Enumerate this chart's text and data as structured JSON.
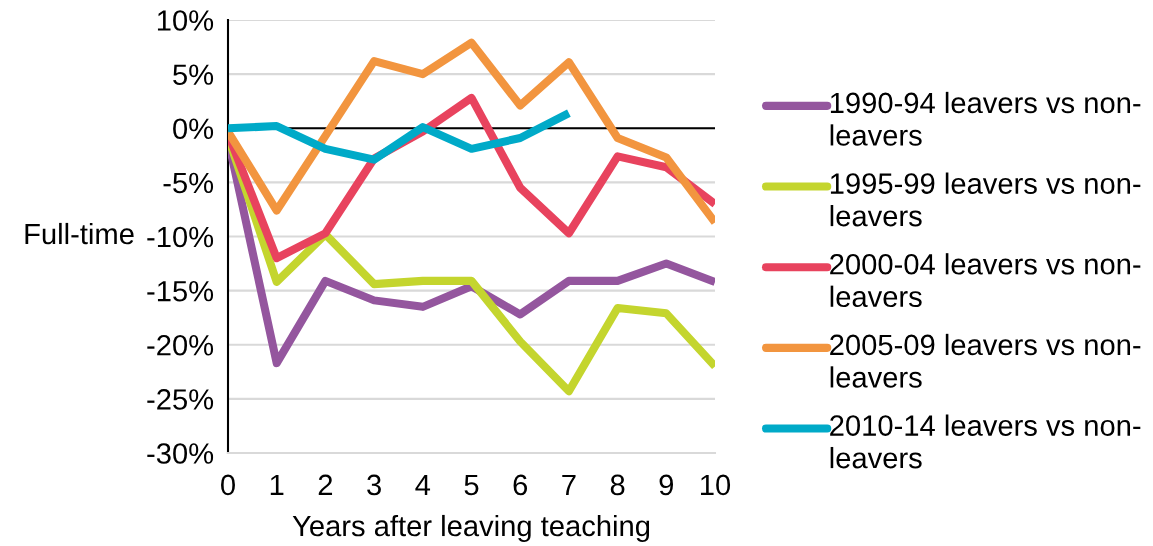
{
  "chart_data": {
    "type": "line",
    "xlabel": "Years after leaving teaching",
    "ylabel": "Full-time",
    "x": [
      0,
      1,
      2,
      3,
      4,
      5,
      6,
      7,
      8,
      9,
      10
    ],
    "series": [
      {
        "name": "1990-94 leavers vs non-leavers",
        "color": "#94569e",
        "values": [
          -1.0,
          -21.7,
          -14.1,
          -15.9,
          -16.5,
          -14.6,
          -17.2,
          -14.1,
          -14.1,
          -12.5,
          -14.2
        ]
      },
      {
        "name": "1995-99 leavers vs non-leavers",
        "color": "#c4d52e",
        "values": [
          -0.8,
          -14.2,
          -9.8,
          -14.4,
          -14.1,
          -14.1,
          -19.7,
          -24.3,
          -16.6,
          -17.1,
          -22.0
        ]
      },
      {
        "name": "2000-04 leavers vs non-leavers",
        "color": "#e8435e",
        "values": [
          -0.5,
          -12.0,
          -9.7,
          -2.8,
          -0.3,
          2.8,
          -5.5,
          -9.7,
          -2.6,
          -3.6,
          -7.0
        ]
      },
      {
        "name": "2005-09 leavers vs non-leavers",
        "color": "#f2953f",
        "values": [
          -0.3,
          -7.6,
          -0.7,
          6.2,
          5.0,
          7.9,
          2.1,
          6.1,
          -0.9,
          -2.7,
          -8.7
        ]
      },
      {
        "name": "2010-14 leavers vs non-leavers",
        "color": "#00aac8",
        "x": [
          0,
          1,
          2,
          3,
          4,
          5,
          6,
          7
        ],
        "values": [
          0.0,
          0.2,
          -1.9,
          -2.9,
          0.1,
          -1.9,
          -0.9,
          1.4
        ]
      }
    ],
    "xlim": [
      0,
      10
    ],
    "xticks": [
      0,
      1,
      2,
      3,
      4,
      5,
      6,
      7,
      8,
      9,
      10
    ],
    "ylim": [
      -30,
      10
    ],
    "yticks": [
      {
        "value": -30,
        "label": "-30%"
      },
      {
        "value": -25,
        "label": "-25%"
      },
      {
        "value": -20,
        "label": "-20%"
      },
      {
        "value": -15,
        "label": "-15%"
      },
      {
        "value": -10,
        "label": "-10%"
      },
      {
        "value": -5,
        "label": "-5%"
      },
      {
        "value": 0,
        "label": "0%"
      },
      {
        "value": 5,
        "label": "5%"
      },
      {
        "value": 10,
        "label": "10%"
      }
    ],
    "grid": "y",
    "legend": "right",
    "line_style": "solid",
    "ref_lines": [
      {
        "axis": "y",
        "value": 0,
        "color": "#000000"
      }
    ]
  }
}
